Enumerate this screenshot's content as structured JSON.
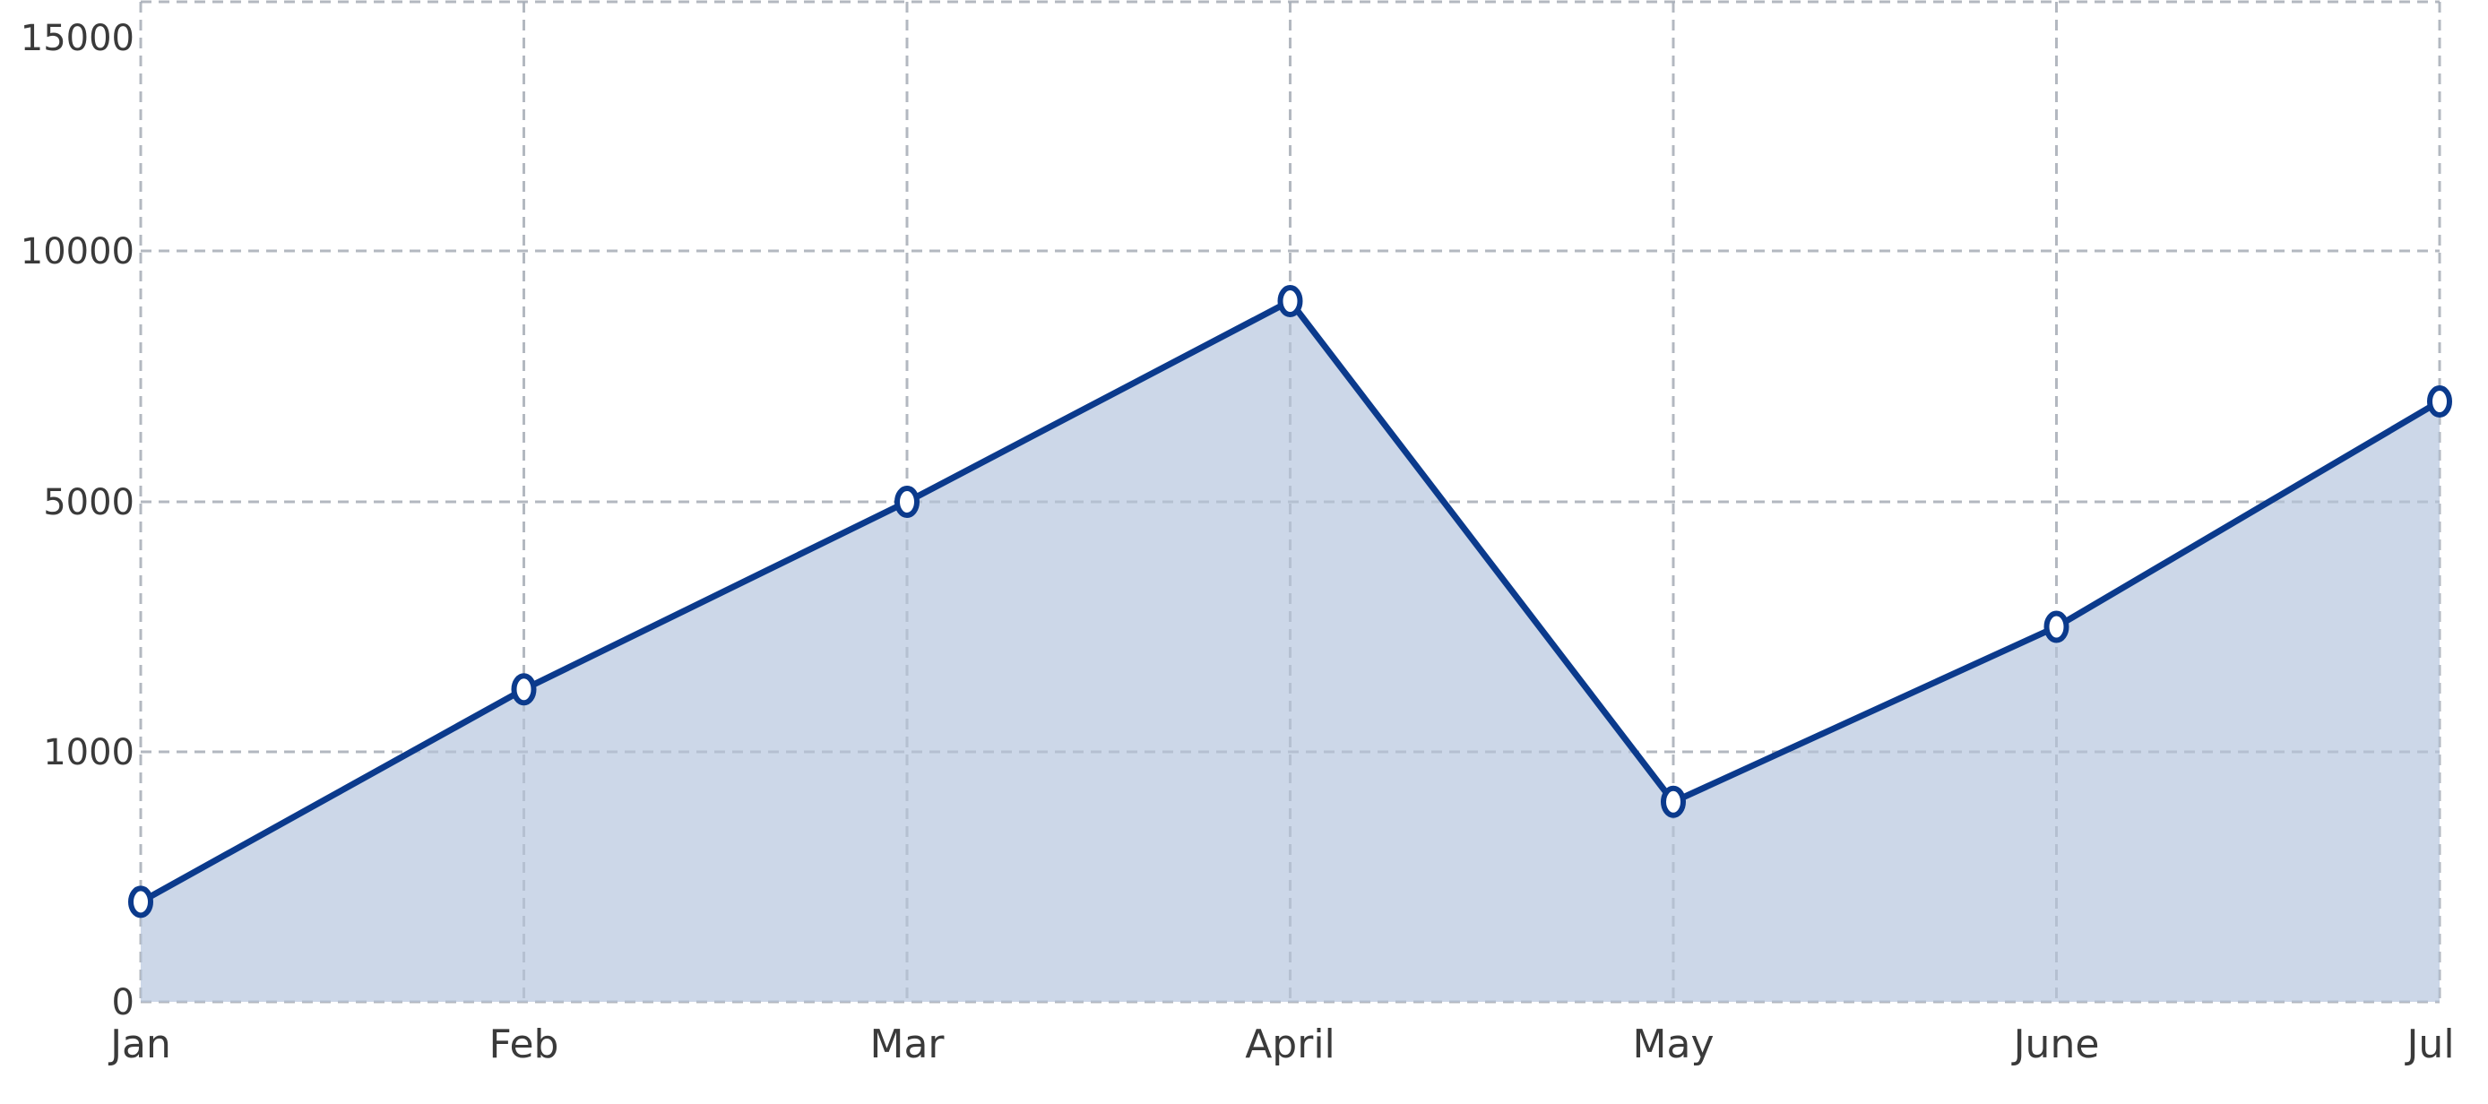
{
  "chart_data": {
    "type": "area",
    "title": "",
    "xlabel": "",
    "ylabel": "",
    "categories": [
      "Jan",
      "Feb",
      "Mar",
      "April",
      "May",
      "June",
      "Jul"
    ],
    "y_ticks": [
      0,
      1000,
      5000,
      10000,
      15000
    ],
    "y_scale": "piecewise",
    "ylim": [
      0,
      15000
    ],
    "grid": true,
    "legend": "none",
    "series": [
      {
        "values": [
          400,
          2000,
          5000,
          9000,
          800,
          3000,
          7000
        ]
      }
    ],
    "colors": {
      "line": "#0b3a8c",
      "fill": "#ccd7e8",
      "grid": "#c8c8c8",
      "marker_fill": "#ffffff"
    }
  }
}
